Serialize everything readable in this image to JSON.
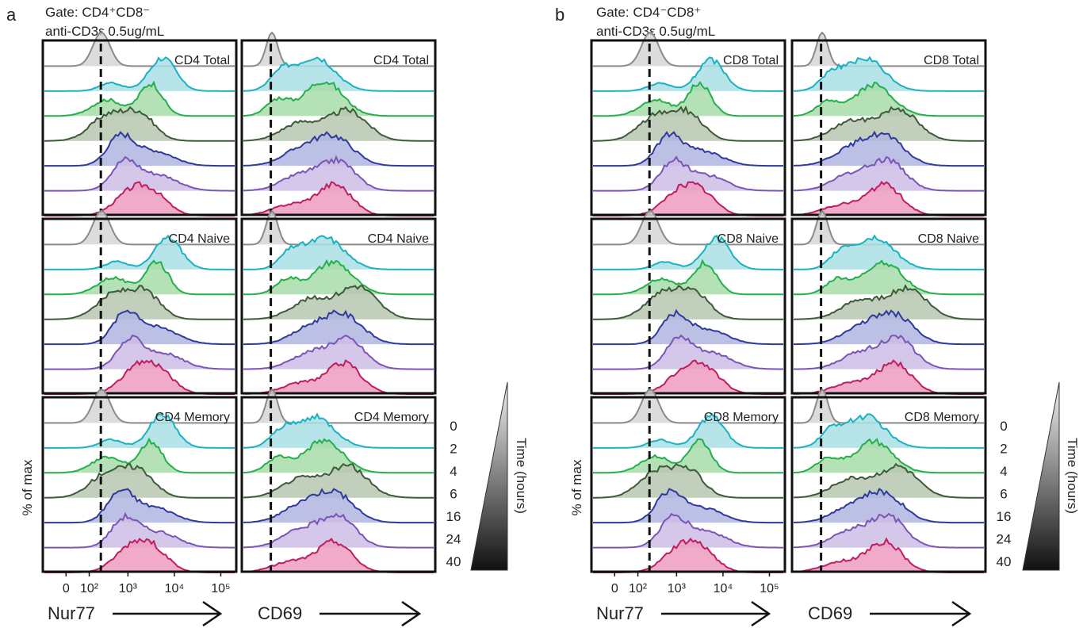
{
  "figure": {
    "panels": [
      {
        "letter": "a",
        "gate_prefix": "Gate: ",
        "gate_label": "CD4⁺CD8⁻",
        "stim_label": "anti-CD3ε 0.5ug/mL",
        "subsets": [
          {
            "nur77_label": "CD4 Total",
            "cd69_label": "CD4 Total"
          },
          {
            "nur77_label": "CD4 Naive",
            "cd69_label": "CD4 Naive"
          },
          {
            "nur77_label": "CD4 Memory",
            "cd69_label": "CD4 Memory"
          }
        ]
      },
      {
        "letter": "b",
        "gate_prefix": "Gate: ",
        "gate_label": "CD4⁻CD8⁺",
        "stim_label": "anti-CD3ε 0.5ug/mL",
        "subsets": [
          {
            "nur77_label": "CD8 Total",
            "cd69_label": "CD8 Total"
          },
          {
            "nur77_label": "CD8 Naive",
            "cd69_label": "CD8 Naive"
          },
          {
            "nur77_label": "CD8 Memory",
            "cd69_label": "CD8 Memory"
          }
        ]
      }
    ],
    "y_axis_label": "% of max",
    "x_axis_labels": [
      "Nur77",
      "CD69"
    ],
    "x_tick_labels": [
      "0",
      "10²",
      "10³",
      "10⁴",
      "10⁵"
    ],
    "time_axis_label": "Time (hours)",
    "time_points": [
      "0",
      "2",
      "4",
      "6",
      "16",
      "24",
      "40"
    ]
  },
  "chart_data": {
    "type": "histogram-overlay",
    "x_scale": "biexponential",
    "x_ticks": [
      0,
      100,
      1000,
      10000,
      100000
    ],
    "x_ticks_shown_on": "Nur77",
    "gate_line": "dashed vertical line at peak of 0 h unstimulated",
    "time_hours": [
      0,
      2,
      4,
      6,
      16,
      24,
      40
    ],
    "series_colors": [
      "#8a8a8a",
      "#19b2c2",
      "#23b04a",
      "#3f5a3a",
      "#2e3a9c",
      "#7a55b5",
      "#c01d5e"
    ],
    "fill_colors": [
      "#d6d6d6",
      "#a9dfe4",
      "#a8dcaa",
      "#b6c7b0",
      "#b0b5e0",
      "#cdbde6",
      "#ec9cc0"
    ]
  }
}
